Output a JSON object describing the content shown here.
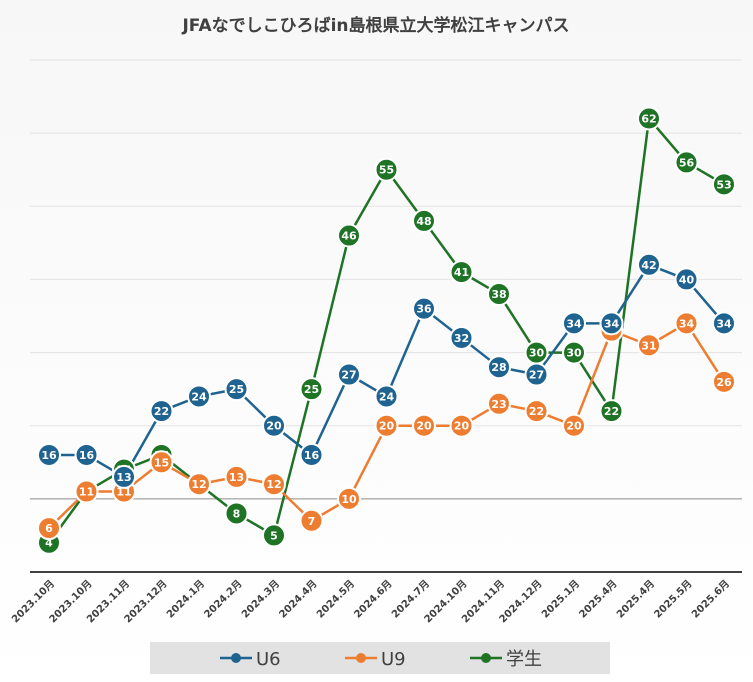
{
  "chart_data": {
    "type": "line",
    "title": "JFAなでしこひろばin島根県立大学松江キャンパス",
    "xlabel": "",
    "ylabel": "",
    "ylim": [
      0,
      70
    ],
    "grid": true,
    "legend_position": "bottom",
    "categories": [
      "2023.10月",
      "2023.10月",
      "2023.11月",
      "2023.12月",
      "2024.1月",
      "2024.2月",
      "2024.3月",
      "2024.4月",
      "2024.5月",
      "2024.6月",
      "2024.7月",
      "2024.10月",
      "2024.11月",
      "2024.12月",
      "2025.1月",
      "2025.4月",
      "2025.4月",
      "2025.5月",
      "2025.6月"
    ],
    "series": [
      {
        "name": "U6",
        "color": "#1f6391",
        "values": [
          16,
          16,
          13,
          22,
          24,
          25,
          20,
          16,
          27,
          24,
          36,
          32,
          28,
          27,
          34,
          34,
          42,
          40,
          34
        ]
      },
      {
        "name": "U9",
        "color": "#ed7d31",
        "values": [
          6,
          11,
          11,
          15,
          12,
          13,
          12,
          7,
          10,
          20,
          20,
          20,
          23,
          22,
          20,
          33,
          31,
          34,
          26
        ]
      },
      {
        "name": "学生",
        "color": "#1e7325",
        "values": [
          4,
          11,
          14,
          16,
          12,
          8,
          5,
          25,
          46,
          55,
          48,
          41,
          38,
          30,
          30,
          22,
          62,
          56,
          53
        ]
      }
    ]
  }
}
